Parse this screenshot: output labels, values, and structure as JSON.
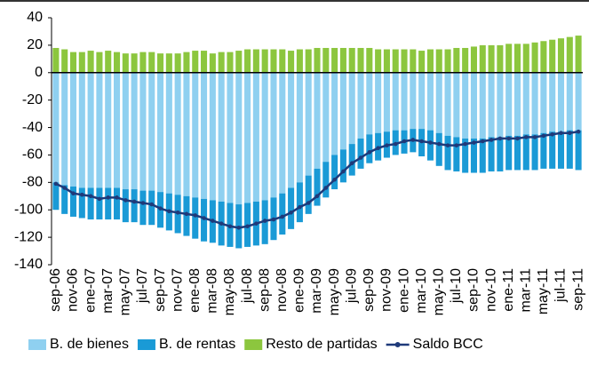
{
  "chart_data": {
    "type": "bar",
    "categories": [
      "sep-06",
      null,
      "nov-06",
      null,
      "ene-07",
      null,
      "mar-07",
      null,
      "may-07",
      null,
      "jul-07",
      null,
      "sep-07",
      null,
      "nov-07",
      null,
      "ene-08",
      null,
      "mar-08",
      null,
      "may-08",
      null,
      "jul-08",
      null,
      "sep-08",
      null,
      "nov-08",
      null,
      "ene-09",
      null,
      "mar-09",
      null,
      "may-09",
      null,
      "jul-09",
      null,
      "sep-09",
      null,
      "nov-09",
      null,
      "ene-10",
      null,
      "mar-10",
      null,
      "may-10",
      null,
      "jul-10",
      null,
      "sep-10",
      null,
      "nov-10",
      null,
      "ene-11",
      null,
      "mar-11",
      null,
      "may-11",
      null,
      "jul-11",
      null,
      "sep-11"
    ],
    "series": [
      {
        "name": "B. de bienes",
        "color": "#8fd0f0",
        "values": [
          -80,
          -82,
          -83,
          -84,
          -84,
          -84,
          -84,
          -84,
          -85,
          -85,
          -86,
          -86,
          -87,
          -88,
          -89,
          -90,
          -91,
          -92,
          -93,
          -94,
          -95,
          -96,
          -95,
          -94,
          -93,
          -91,
          -88,
          -84,
          -80,
          -75,
          -70,
          -65,
          -60,
          -56,
          -52,
          -48,
          -45,
          -44,
          -43,
          -42,
          -42,
          -41,
          -41,
          -42,
          -44,
          -46,
          -47,
          -48,
          -48,
          -48,
          -47,
          -47,
          -46,
          -46,
          -45,
          -45,
          -44,
          -43,
          -43,
          -42,
          -42
        ]
      },
      {
        "name": "B. de rentas",
        "color": "#1a9ad6",
        "values": [
          -20,
          -21,
          -22,
          -22,
          -23,
          -23,
          -23,
          -23,
          -24,
          -24,
          -25,
          -25,
          -26,
          -27,
          -28,
          -29,
          -30,
          -31,
          -31,
          -32,
          -32,
          -32,
          -32,
          -32,
          -32,
          -31,
          -30,
          -30,
          -29,
          -28,
          -27,
          -26,
          -25,
          -24,
          -23,
          -22,
          -21,
          -20,
          -19,
          -18,
          -17,
          -17,
          -20,
          -22,
          -24,
          -25,
          -25,
          -25,
          -25,
          -25,
          -25,
          -25,
          -25,
          -25,
          -26,
          -26,
          -26,
          -27,
          -27,
          -28,
          -29
        ]
      },
      {
        "name": "Resto de partidas",
        "color": "#8cc63e",
        "values": [
          18,
          17,
          15,
          15,
          16,
          15,
          16,
          15,
          14,
          14,
          15,
          15,
          14,
          14,
          14,
          15,
          16,
          16,
          14,
          15,
          15,
          16,
          17,
          17,
          17,
          17,
          17,
          16,
          17,
          17,
          18,
          18,
          18,
          18,
          18,
          18,
          18,
          17,
          17,
          17,
          17,
          17,
          16,
          17,
          17,
          17,
          18,
          18,
          19,
          20,
          20,
          20,
          21,
          21,
          21,
          22,
          23,
          24,
          25,
          26,
          27
        ]
      },
      {
        "name": "Saldo BCC",
        "type": "line",
        "color": "#1f3a7a",
        "values": [
          -81,
          -84,
          -88,
          -89,
          -90,
          -92,
          -91,
          -91,
          -93,
          -94,
          -95,
          -96,
          -99,
          -101,
          -102,
          -103,
          -104,
          -106,
          -108,
          -110,
          -112,
          -113,
          -112,
          -110,
          -108,
          -107,
          -105,
          -102,
          -98,
          -95,
          -90,
          -84,
          -78,
          -72,
          -66,
          -62,
          -58,
          -55,
          -53,
          -52,
          -50,
          -49,
          -50,
          -51,
          -52,
          -53,
          -53,
          -52,
          -51,
          -50,
          -49,
          -48,
          -48,
          -48,
          -47,
          -47,
          -46,
          -45,
          -44,
          -44,
          -43
        ]
      }
    ],
    "ylim": [
      -140,
      40
    ],
    "yticks": [
      -140,
      -120,
      -100,
      -80,
      -60,
      -40,
      -20,
      0,
      20,
      40
    ]
  }
}
